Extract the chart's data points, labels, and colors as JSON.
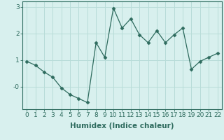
{
  "x": [
    0,
    1,
    2,
    3,
    4,
    5,
    6,
    7,
    8,
    9,
    10,
    11,
    12,
    13,
    14,
    15,
    16,
    17,
    18,
    19,
    20,
    21,
    22
  ],
  "y": [
    0.95,
    0.8,
    0.55,
    0.35,
    -0.05,
    -0.3,
    -0.45,
    -0.6,
    1.65,
    1.1,
    2.95,
    2.2,
    2.55,
    1.95,
    1.65,
    2.1,
    1.65,
    1.95,
    2.2,
    0.65,
    0.95,
    1.1,
    1.25
  ],
  "line_color": "#2e6b5e",
  "marker": "D",
  "marker_size": 2.5,
  "bg_color": "#d8f0ee",
  "grid_color": "#b8dcd8",
  "xlabel": "Humidex (Indice chaleur)",
  "xlim": [
    -0.5,
    22.5
  ],
  "ylim": [
    -0.85,
    3.2
  ],
  "yticks": [
    3,
    2,
    1,
    0
  ],
  "ytick_labels": [
    "3",
    "2",
    "1",
    "-0"
  ],
  "xticks": [
    0,
    1,
    2,
    3,
    4,
    5,
    6,
    7,
    8,
    9,
    10,
    11,
    12,
    13,
    14,
    15,
    16,
    17,
    18,
    19,
    20,
    21,
    22
  ],
  "label_fontsize": 7.5,
  "tick_fontsize": 6.5
}
